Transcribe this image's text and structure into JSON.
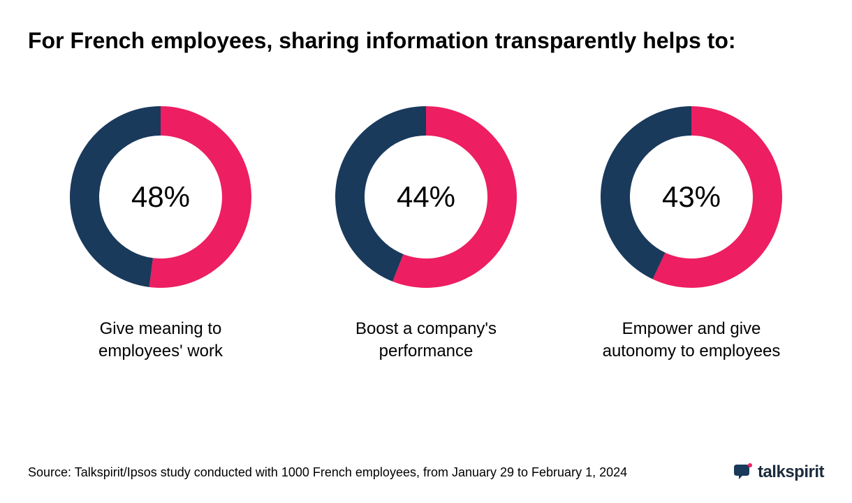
{
  "title": "For French employees, sharing information transparently helps to:",
  "donut": {
    "outer_radius": 130,
    "inner_radius": 88,
    "primary_color": "#1a3a5c",
    "secondary_color": "#ed1e61",
    "background": "#ffffff",
    "value_fontsize": 42,
    "value_color": "#000000",
    "caption_fontsize": 24,
    "caption_color": "#000000"
  },
  "charts": [
    {
      "percent": 48,
      "value_label": "48%",
      "caption": "Give meaning to employees' work"
    },
    {
      "percent": 44,
      "value_label": "44%",
      "caption": "Boost a company's performance"
    },
    {
      "percent": 43,
      "value_label": "43%",
      "caption": "Empower and give autonomy to employees"
    }
  ],
  "source": "Source: Talkspirit/Ipsos study conducted with 1000 French employees, from January 29 to February 1, 2024",
  "logo": {
    "text": "talkspirit",
    "text_color": "#1a2b3c",
    "icon_primary": "#1a3a5c",
    "icon_accent": "#ed1e61"
  }
}
